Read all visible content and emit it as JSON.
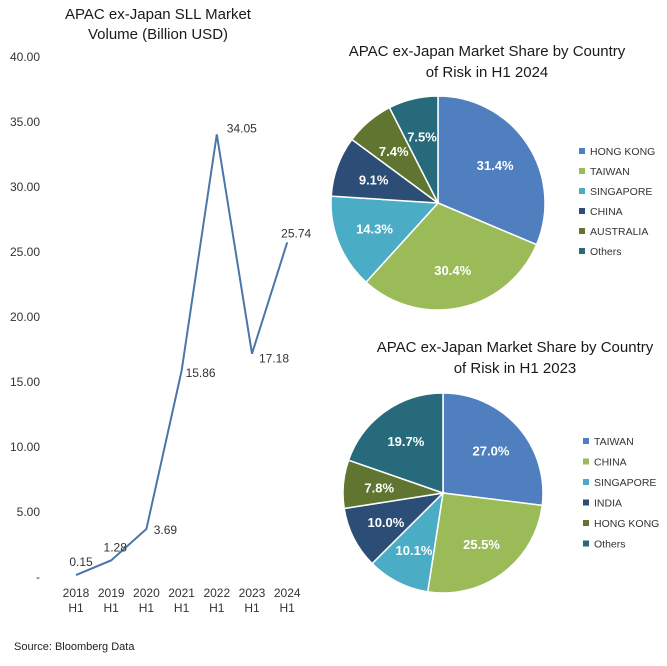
{
  "chart_data": [
    {
      "type": "line",
      "title_lines": [
        "APAC ex-Japan SLL Market",
        "Volume (Billion USD)"
      ],
      "categories": [
        [
          "2018",
          "H1"
        ],
        [
          "2019",
          "H1"
        ],
        [
          "2020",
          "H1"
        ],
        [
          "2021",
          "H1"
        ],
        [
          "2022",
          "H1"
        ],
        [
          "2023",
          "H1"
        ],
        [
          "2024",
          "H1"
        ]
      ],
      "values": [
        0.15,
        1.28,
        3.69,
        15.86,
        34.05,
        17.18,
        25.74
      ],
      "data_labels": [
        "0.15",
        "1.28",
        "3.69",
        "15.86",
        "34.05",
        "17.18",
        "25.74"
      ],
      "yticks": [
        "-",
        "5.00",
        "10.00",
        "15.00",
        "20.00",
        "25.00",
        "30.00",
        "35.00",
        "40.00"
      ],
      "ylim": [
        0,
        40
      ],
      "grid": false,
      "line_color": "#4a76a8"
    },
    {
      "type": "pie",
      "title_lines": [
        "APAC ex-Japan Market Share by Country",
        "of Risk in H1 2024"
      ],
      "slices": [
        {
          "name": "HONG KONG",
          "value": 31.4,
          "label": "31.4%",
          "color": "#4f7fbe"
        },
        {
          "name": "TAIWAN",
          "value": 30.4,
          "label": "30.4%",
          "color": "#9bbb59"
        },
        {
          "name": "SINGAPORE",
          "value": 14.3,
          "label": "14.3%",
          "color": "#4bacc6"
        },
        {
          "name": "CHINA",
          "value": 9.1,
          "label": "9.1%",
          "color": "#2c4d75"
        },
        {
          "name": "AUSTRALIA",
          "value": 7.4,
          "label": "7.4%",
          "color": "#5f7530"
        },
        {
          "name": "Others",
          "value": 7.5,
          "label": "7.5%",
          "color": "#276a7c"
        }
      ],
      "legend_position": "right"
    },
    {
      "type": "pie",
      "title_lines": [
        "APAC ex-Japan Market Share by Country",
        "of Risk in H1 2023"
      ],
      "slices": [
        {
          "name": "TAIWAN",
          "value": 27.0,
          "label": "27.0%",
          "color": "#4f7fbe"
        },
        {
          "name": "CHINA",
          "value": 25.5,
          "label": "25.5%",
          "color": "#9bbb59"
        },
        {
          "name": "SINGAPORE",
          "value": 10.1,
          "label": "10.1%",
          "color": "#4bacc6"
        },
        {
          "name": "INDIA",
          "value": 10.0,
          "label": "10.0%",
          "color": "#2c4d75"
        },
        {
          "name": "HONG KONG",
          "value": 7.8,
          "label": "7.8%",
          "color": "#5f7530"
        },
        {
          "name": "Others",
          "value": 19.7,
          "label": "19.7%",
          "color": "#276a7c"
        }
      ],
      "legend_position": "right"
    }
  ],
  "source": "Source: Bloomberg Data"
}
